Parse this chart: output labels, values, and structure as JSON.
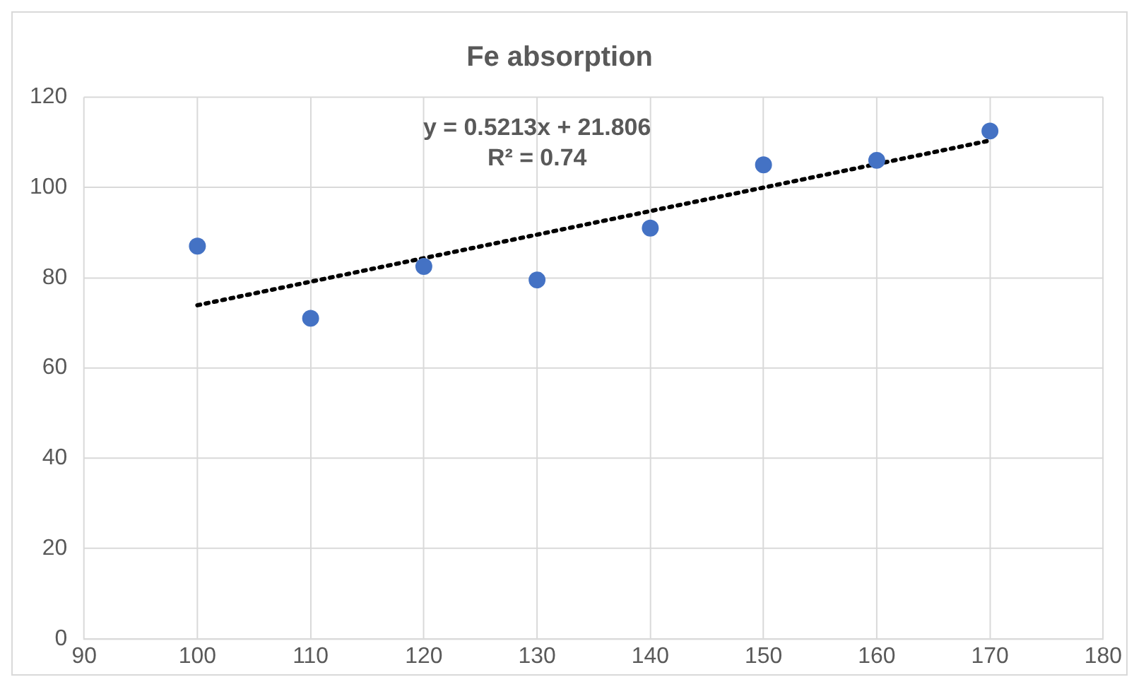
{
  "chart_data": {
    "type": "scatter",
    "title": "Fe absorption",
    "x": [
      100,
      110,
      120,
      130,
      140,
      150,
      160,
      170
    ],
    "series": [
      {
        "color": "#4472c4",
        "values": [
          87,
          71,
          82.5,
          79.5,
          91,
          105,
          106,
          112.5
        ],
        "marker": "circle"
      },
      {
        "type": "line",
        "x": [
          100,
          170
        ],
        "values": [
          73.9,
          110.4
        ],
        "color": "#000000",
        "line_style": "dotted",
        "marker": "none"
      }
    ],
    "xlim": [
      90,
      180
    ],
    "xticks": [
      90,
      100,
      110,
      120,
      130,
      140,
      150,
      160,
      170,
      180
    ],
    "ylim": [
      0,
      120
    ],
    "yticks": [
      0,
      20,
      40,
      60,
      80,
      100,
      120
    ],
    "grid": true,
    "legend": false,
    "annotations": [
      "y = 0.5213x + 21.806",
      "R² = 0.74"
    ]
  }
}
